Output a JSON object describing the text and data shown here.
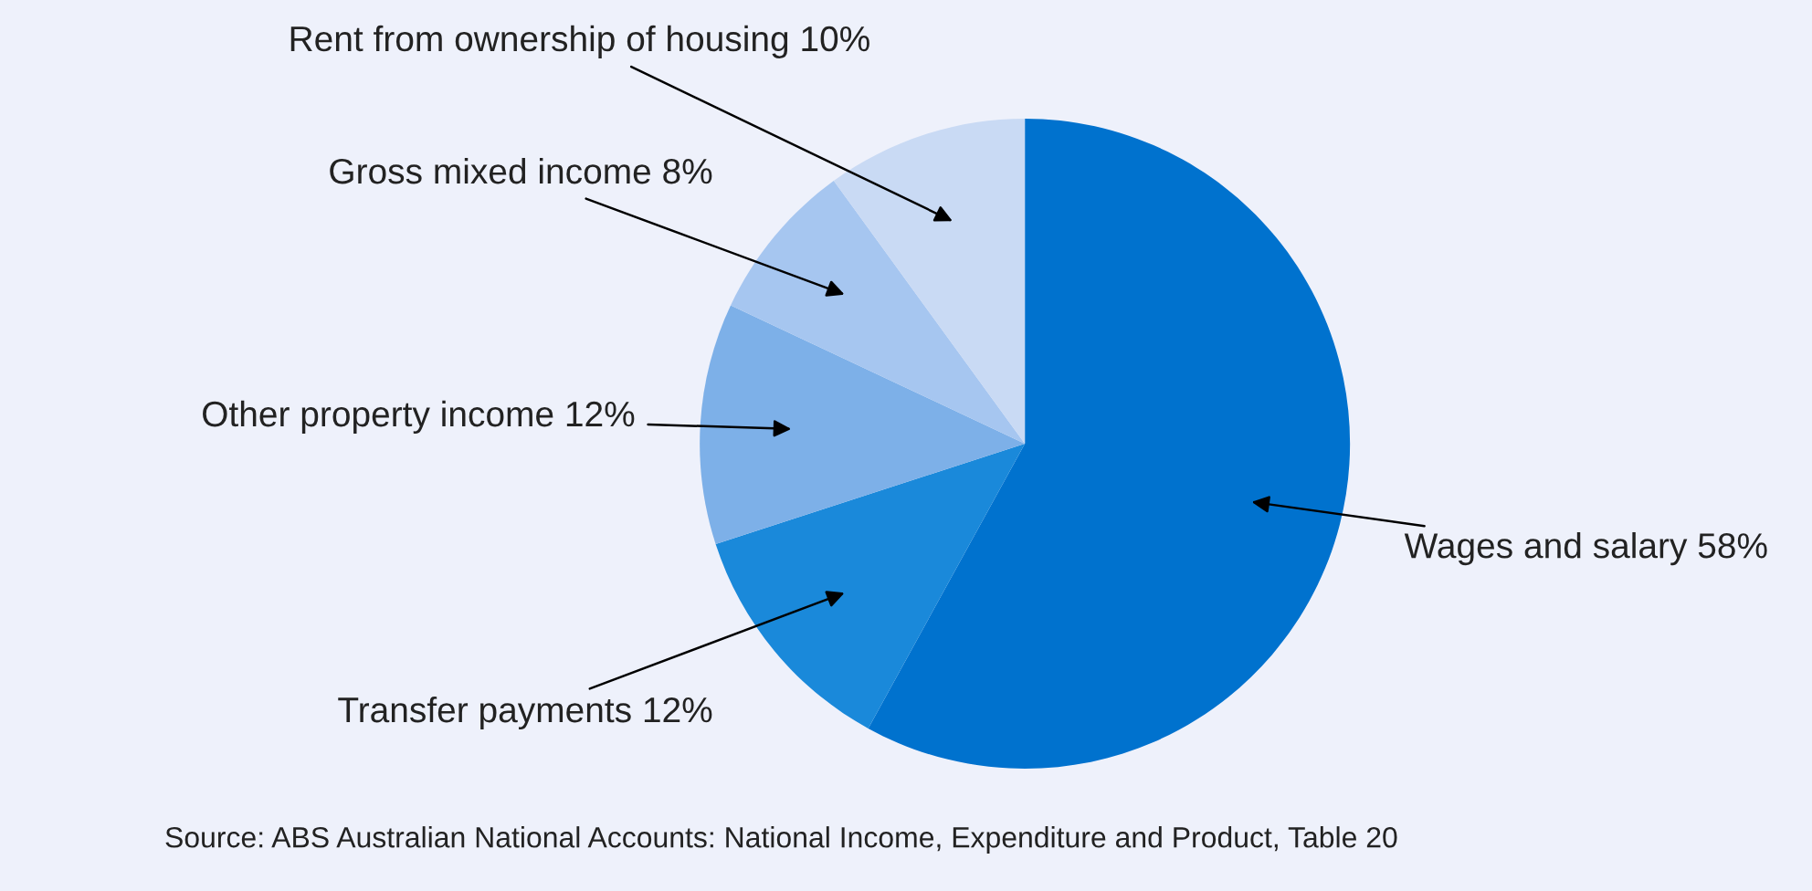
{
  "chart_data": {
    "type": "pie",
    "categories": [
      "Wages and salary",
      "Transfer payments",
      "Other property income",
      "Gross mixed income",
      "Rent from ownership of housing"
    ],
    "values": [
      58,
      12,
      12,
      8,
      10
    ],
    "value_labels": [
      "58%",
      "12%",
      "12%",
      "8%",
      "10%"
    ],
    "colors": [
      "#0072ce",
      "#1a89da",
      "#7db0e8",
      "#a6c6f0",
      "#c9daf4"
    ],
    "legend": false,
    "annotations": [
      "Source: ABS Australian National Accounts: National Income, Expenditure and Product, Table 20"
    ]
  }
}
